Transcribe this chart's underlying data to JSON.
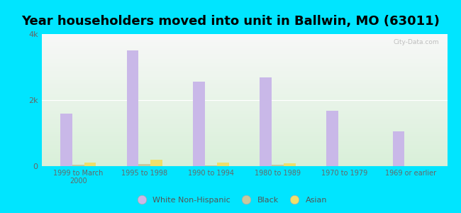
{
  "title": "Year householders moved into unit in Ballwin, MO (63011)",
  "categories": [
    "1999 to March\n2000",
    "1995 to 1998",
    "1990 to 1994",
    "1980 to 1989",
    "1970 to 1979",
    "1969 or earlier"
  ],
  "white": [
    1600,
    3500,
    2550,
    2680,
    1680,
    1050
  ],
  "black": [
    50,
    60,
    30,
    50,
    0,
    0
  ],
  "asian": [
    100,
    200,
    100,
    80,
    0,
    0
  ],
  "white_color": "#c9b8e8",
  "black_color": "#c8c89e",
  "asian_color": "#f0e06a",
  "bg_outer": "#00e5ff",
  "ylim": [
    0,
    4000
  ],
  "yticks": [
    0,
    2000,
    4000
  ],
  "ytick_labels": [
    "0",
    "2k",
    "4k"
  ],
  "title_fontsize": 13,
  "bar_width": 0.18,
  "legend_labels": [
    "White Non-Hispanic",
    "Black",
    "Asian"
  ],
  "watermark": "City-Data.com"
}
